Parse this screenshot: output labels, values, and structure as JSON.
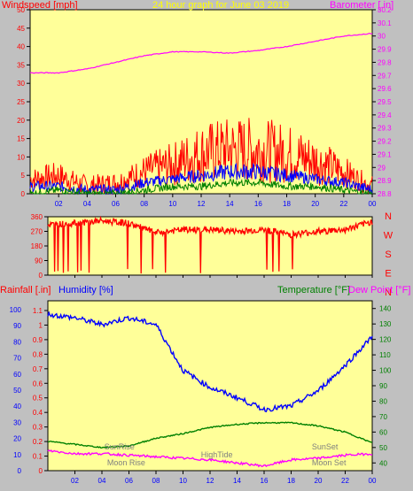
{
  "colors": {
    "background": "#c0c0c0",
    "plot_bg": "#ffff99",
    "wind_gust": "#ff0000",
    "wind_avg": "#0000ff",
    "wind_low": "#008000",
    "barometer": "#ff00ff",
    "direction": "#ff0000",
    "humidity": "#0000ff",
    "temperature": "#008000",
    "dew_point": "#ff00ff",
    "label_red": "#ff0000",
    "label_blue": "#0000ff",
    "label_green": "#008000",
    "label_magenta": "#ff00ff",
    "label_title": "#ffff00",
    "label_astro": "#808080"
  },
  "chart_data": [
    {
      "type": "line",
      "title": "24 hour graph for  June 03 2019",
      "ylabel_left": "Windspeed [mph]",
      "ylabel_right": "Barometer [.in]",
      "x_ticks": [
        "02",
        "04",
        "06",
        "08",
        "10",
        "12",
        "14",
        "16",
        "18",
        "20",
        "22",
        "00"
      ],
      "y_left_ticks": [
        "0",
        "5",
        "10",
        "15",
        "20",
        "25",
        "30",
        "35",
        "40",
        "45",
        "50"
      ],
      "y_right_ticks": [
        "28.8",
        "28.9",
        "29",
        "29.1",
        "29.2",
        "29.3",
        "29.4",
        "29.5",
        "29.6",
        "29.7",
        "29.8",
        "29.9",
        "30",
        "30.1",
        "30.2"
      ],
      "ylim_left": [
        0,
        50
      ],
      "ylim_right": [
        28.8,
        30.2
      ],
      "x_hours": [
        0,
        2,
        4,
        6,
        8,
        10,
        12,
        14,
        16,
        18,
        20,
        22,
        24
      ],
      "series": [
        {
          "key": "barometer",
          "axis": "right",
          "values": [
            29.72,
            29.72,
            29.75,
            29.8,
            29.85,
            29.88,
            29.88,
            29.87,
            29.89,
            29.92,
            29.96,
            30.0,
            30.02
          ]
        },
        {
          "key": "gust",
          "axis": "left",
          "values": [
            4,
            5,
            2,
            3,
            6,
            8,
            11,
            12,
            12,
            11,
            9,
            6,
            2
          ]
        },
        {
          "key": "avg",
          "axis": "left",
          "values": [
            2,
            2,
            1,
            1,
            3,
            4,
            5,
            6,
            6,
            5,
            4,
            3,
            1
          ]
        },
        {
          "key": "low",
          "axis": "left",
          "values": [
            0,
            1,
            0,
            0,
            1,
            2,
            2,
            3,
            3,
            2,
            2,
            1,
            0
          ]
        }
      ]
    },
    {
      "type": "scatter",
      "ylabel_right": [
        "N",
        "W",
        "S",
        "E",
        "N"
      ],
      "y_ticks": [
        "0",
        "90",
        "180",
        "270",
        "360"
      ],
      "ylim": [
        0,
        360
      ],
      "x_hours": [
        0,
        2,
        4,
        6,
        8,
        10,
        12,
        14,
        16,
        18,
        20,
        22,
        24
      ],
      "values": [
        310,
        320,
        335,
        320,
        260,
        280,
        280,
        270,
        280,
        250,
        270,
        280,
        330
      ]
    },
    {
      "type": "line",
      "ylabel_left": "Rainfall [.in]",
      "ylabel_left2": "Humidity [%]",
      "ylabel_right": "Temperature [°F]",
      "ylabel_right2": "Dew Point [°F]",
      "y_hum_ticks": [
        "0",
        "10",
        "20",
        "30",
        "40",
        "50",
        "60",
        "70",
        "80",
        "90",
        "100"
      ],
      "y_rain_ticks": [
        "0",
        "0.1",
        "0.2",
        "0.3",
        "0.4",
        "0.5",
        "0.6",
        "0.7",
        "0.8",
        "0.9",
        "1",
        "1.1"
      ],
      "y_temp_ticks": [
        "40",
        "50",
        "60",
        "70",
        "80",
        "90",
        "100",
        "110",
        "120",
        "130",
        "140"
      ],
      "ylim_humidity": [
        0,
        100
      ],
      "ylim_temp": [
        35,
        145
      ],
      "x_ticks": [
        "02",
        "04",
        "06",
        "08",
        "10",
        "12",
        "14",
        "16",
        "18",
        "20",
        "22",
        "00"
      ],
      "x_hours": [
        0,
        2,
        4,
        6,
        8,
        10,
        12,
        14,
        16,
        18,
        20,
        22,
        24
      ],
      "series": [
        {
          "key": "humidity",
          "axis": "humidity",
          "values": [
            92,
            90,
            86,
            90,
            86,
            59,
            49,
            43,
            36,
            38,
            47,
            62,
            79
          ]
        },
        {
          "key": "temperature",
          "axis": "temp",
          "values": [
            54,
            52,
            50,
            51,
            56,
            59,
            63,
            65,
            66,
            66,
            64,
            60,
            53
          ]
        },
        {
          "key": "dewpoint",
          "axis": "temp",
          "values": [
            48,
            46,
            46,
            45,
            44,
            43,
            42,
            40,
            38,
            42,
            43,
            45,
            46
          ]
        }
      ],
      "annotations": [
        {
          "text": "SunRise",
          "hour": 5.3,
          "row": "top"
        },
        {
          "text": "Moon Rise",
          "hour": 5.8,
          "row": "bottom"
        },
        {
          "text": "HighTide",
          "hour": 12.5,
          "row": "mid"
        },
        {
          "text": "SunSet",
          "hour": 20.5,
          "row": "top"
        },
        {
          "text": "Moon Set",
          "hour": 20.8,
          "row": "bottom"
        }
      ]
    }
  ]
}
